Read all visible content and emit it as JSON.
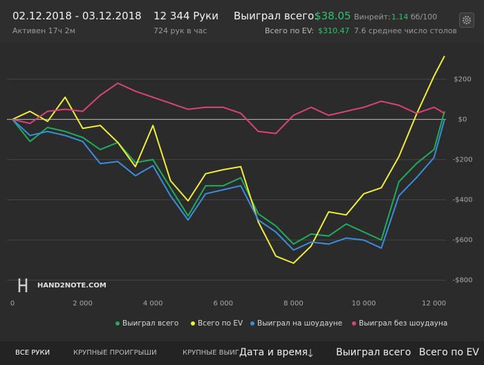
{
  "header": {
    "dates": "02.12.2018 - 03.12.2018",
    "active": "Активен 17ч 2м",
    "hands": "12 344 Руки",
    "hands_per_hour": "724 рук в час",
    "won_label": "Выиграл всего:",
    "won_value": "$38.05",
    "ev_label": "Всего по EV:",
    "ev_value": "$310.47",
    "winrate_label": "Винрейт:",
    "winrate_value": "1.14",
    "winrate_unit": "бб/100",
    "tables": "7.6 среднее число столов"
  },
  "logo": "HAND2NOTE.COM",
  "chart_data": {
    "type": "line",
    "x": [
      0,
      500,
      1000,
      1500,
      2000,
      2500,
      3000,
      3500,
      4000,
      4500,
      5000,
      5500,
      6000,
      6500,
      7000,
      7500,
      8000,
      8500,
      9000,
      9500,
      10000,
      10500,
      11000,
      11500,
      12000,
      12300
    ],
    "series": [
      {
        "name": "Выиграл всего",
        "color": "#1fae5b",
        "values": [
          0,
          -110,
          -40,
          -60,
          -90,
          -150,
          -115,
          -215,
          -200,
          -340,
          -480,
          -330,
          -330,
          -290,
          -470,
          -530,
          -620,
          -570,
          -580,
          -520,
          -560,
          -600,
          -310,
          -220,
          -150,
          40
        ]
      },
      {
        "name": "Всего по EV",
        "color": "#f2ee3c",
        "values": [
          0,
          40,
          -10,
          110,
          -45,
          -30,
          -115,
          -235,
          -30,
          -305,
          -405,
          -270,
          -250,
          -235,
          -510,
          -680,
          -715,
          -630,
          -460,
          -475,
          -370,
          -340,
          -185,
          25,
          215,
          315
        ]
      },
      {
        "name": "Выиграл на шоудауне",
        "color": "#3b8de0",
        "values": [
          0,
          -80,
          -60,
          -80,
          -110,
          -220,
          -210,
          -280,
          -230,
          -380,
          -500,
          -370,
          -350,
          -330,
          -500,
          -560,
          -650,
          -610,
          -620,
          -590,
          -600,
          -640,
          -380,
          -290,
          -190,
          0
        ]
      },
      {
        "name": "Выиграл без шоудауна",
        "color": "#dc4379",
        "values": [
          0,
          -20,
          40,
          50,
          40,
          120,
          180,
          140,
          110,
          80,
          50,
          60,
          60,
          30,
          -60,
          -70,
          20,
          60,
          20,
          40,
          60,
          90,
          70,
          30,
          60,
          30
        ]
      }
    ],
    "xlim": [
      0,
      12400
    ],
    "ylim": [
      -870,
      380
    ],
    "xticks": [
      0,
      {
        "value": 2000,
        "label": "2 000"
      },
      {
        "value": 4000,
        "label": "4 000"
      },
      {
        "value": 6000,
        "label": "6 000"
      },
      {
        "value": 8000,
        "label": "8 000"
      },
      {
        "value": 10000,
        "label": "10 000"
      },
      {
        "value": 12000,
        "label": "12 000"
      }
    ],
    "yticks": [
      {
        "value": 200,
        "label": "$200"
      },
      {
        "value": 0,
        "label": "$0"
      },
      {
        "value": -200,
        "label": "-$200"
      },
      {
        "value": -400,
        "label": "-$400"
      },
      {
        "value": -600,
        "label": "-$600"
      },
      {
        "value": -800,
        "label": "-$800"
      }
    ],
    "grid": true
  },
  "tabs": [
    "ВСЕ РУКИ",
    "КРУПНЫЕ ПРОИГРЫШИ",
    "КРУПНЫЕ ВЫИГРЫШИ"
  ],
  "columns": [
    "Дата и время",
    "Выиграл всего",
    "Всего по EV"
  ]
}
